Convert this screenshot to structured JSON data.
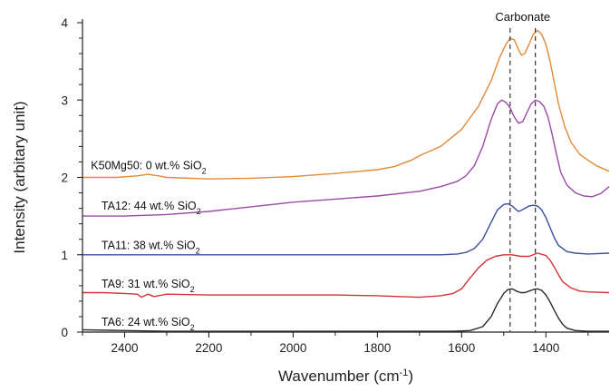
{
  "chart_data": {
    "type": "line",
    "title": "",
    "xlabel_main": "Wavenumber (cm",
    "xlabel_sup": "-1",
    "xlabel_close": ")",
    "ylabel": "Intensity (arbitary unit)",
    "xlim": [
      2500,
      1250
    ],
    "ylim": [
      0,
      4
    ],
    "x_reversed": true,
    "xticks": [
      2400,
      2200,
      2000,
      1800,
      1600,
      1400
    ],
    "yticks": [
      0,
      1,
      2,
      3,
      4
    ],
    "grid": false,
    "annotation": {
      "label": "Carbonate",
      "lines_x": [
        1485,
        1425
      ],
      "line_style": "dashed"
    },
    "series": [
      {
        "name": "TA6: 24 wt.% SiO2",
        "label_parts": [
          "TA6: 24 wt.% SiO",
          "2"
        ],
        "color": "#2b2b2b",
        "x": [
          2500,
          2400,
          2300,
          2200,
          2100,
          2000,
          1900,
          1800,
          1700,
          1620,
          1580,
          1550,
          1530,
          1515,
          1500,
          1490,
          1480,
          1470,
          1460,
          1450,
          1440,
          1430,
          1420,
          1410,
          1400,
          1390,
          1380,
          1370,
          1360,
          1350,
          1330,
          1300,
          1250
        ],
        "y": [
          0.03,
          0.02,
          0.01,
          0.01,
          0.01,
          0.01,
          0.01,
          0.01,
          0.01,
          0.01,
          0.02,
          0.07,
          0.2,
          0.37,
          0.5,
          0.55,
          0.56,
          0.53,
          0.51,
          0.51,
          0.53,
          0.55,
          0.56,
          0.54,
          0.48,
          0.39,
          0.28,
          0.18,
          0.1,
          0.05,
          0.02,
          0.01,
          0.01
        ]
      },
      {
        "name": "TA9: 31 wt.% SiO2",
        "label_parts": [
          "TA9: 31 wt.% SiO",
          "2"
        ],
        "color": "#d2343a",
        "x": [
          2500,
          2450,
          2400,
          2370,
          2360,
          2345,
          2330,
          2300,
          2200,
          2100,
          2000,
          1900,
          1800,
          1750,
          1700,
          1650,
          1620,
          1600,
          1580,
          1560,
          1540,
          1520,
          1500,
          1480,
          1460,
          1440,
          1420,
          1400,
          1390,
          1380,
          1370,
          1360,
          1340,
          1320,
          1300,
          1250
        ],
        "y": [
          0.51,
          0.51,
          0.5,
          0.49,
          0.45,
          0.49,
          0.46,
          0.49,
          0.48,
          0.48,
          0.48,
          0.48,
          0.47,
          0.46,
          0.45,
          0.47,
          0.5,
          0.56,
          0.7,
          0.83,
          0.93,
          0.98,
          1.0,
          1.0,
          0.98,
          0.98,
          1.02,
          0.99,
          0.93,
          0.84,
          0.74,
          0.65,
          0.57,
          0.53,
          0.52,
          0.51
        ]
      },
      {
        "name": "TA11: 38 wt.% SiO2",
        "label_parts": [
          "TA11: 38 wt.% SiO",
          "2"
        ],
        "color": "#3a4ea2",
        "x": [
          2500,
          2400,
          2300,
          2200,
          2100,
          2000,
          1900,
          1800,
          1700,
          1650,
          1610,
          1590,
          1570,
          1550,
          1530,
          1515,
          1500,
          1490,
          1480,
          1470,
          1465,
          1460,
          1450,
          1440,
          1430,
          1420,
          1410,
          1400,
          1390,
          1380,
          1370,
          1350,
          1330,
          1300,
          1250
        ],
        "y": [
          1.0,
          1.0,
          1.0,
          1.0,
          1.0,
          1.0,
          1.0,
          1.0,
          1.0,
          1.0,
          1.01,
          1.03,
          1.08,
          1.2,
          1.42,
          1.58,
          1.65,
          1.66,
          1.63,
          1.58,
          1.56,
          1.57,
          1.6,
          1.63,
          1.64,
          1.63,
          1.58,
          1.48,
          1.35,
          1.22,
          1.12,
          1.04,
          1.02,
          1.01,
          1.02
        ]
      },
      {
        "name": "TA12: 44 wt.% SiO2",
        "label_parts": [
          "TA12: 44 wt.% SiO",
          "2"
        ],
        "color": "#9a4aa6",
        "x": [
          2500,
          2400,
          2300,
          2200,
          2100,
          2000,
          1900,
          1800,
          1700,
          1650,
          1610,
          1590,
          1570,
          1550,
          1530,
          1515,
          1505,
          1495,
          1485,
          1475,
          1465,
          1455,
          1445,
          1435,
          1425,
          1415,
          1405,
          1395,
          1385,
          1375,
          1365,
          1350,
          1330,
          1310,
          1290,
          1270,
          1250
        ],
        "y": [
          1.5,
          1.5,
          1.52,
          1.56,
          1.62,
          1.68,
          1.72,
          1.76,
          1.82,
          1.88,
          1.95,
          2.02,
          2.15,
          2.4,
          2.75,
          2.95,
          3.0,
          2.97,
          2.9,
          2.78,
          2.7,
          2.72,
          2.84,
          2.95,
          3.0,
          2.98,
          2.92,
          2.78,
          2.55,
          2.3,
          2.07,
          1.9,
          1.8,
          1.76,
          1.75,
          1.79,
          1.88
        ]
      },
      {
        "name": "K50Mg50: 0 wt.% SiO2",
        "label_parts": [
          "K50Mg50: 0 wt.% SiO",
          "2"
        ],
        "color": "#e08a3a",
        "x": [
          2500,
          2420,
          2370,
          2345,
          2320,
          2300,
          2200,
          2100,
          2000,
          1900,
          1800,
          1760,
          1720,
          1700,
          1650,
          1600,
          1560,
          1530,
          1510,
          1495,
          1485,
          1475,
          1465,
          1458,
          1450,
          1440,
          1430,
          1420,
          1410,
          1400,
          1390,
          1380,
          1370,
          1355,
          1340,
          1320,
          1300,
          1280,
          1250
        ],
        "y": [
          2.0,
          2.0,
          2.02,
          2.04,
          2.02,
          2.0,
          1.98,
          1.99,
          2.01,
          2.05,
          2.1,
          2.14,
          2.22,
          2.28,
          2.4,
          2.62,
          2.92,
          3.25,
          3.55,
          3.72,
          3.8,
          3.78,
          3.65,
          3.58,
          3.6,
          3.72,
          3.85,
          3.9,
          3.85,
          3.72,
          3.5,
          3.22,
          2.95,
          2.65,
          2.45,
          2.3,
          2.22,
          2.15,
          2.08
        ]
      }
    ]
  }
}
